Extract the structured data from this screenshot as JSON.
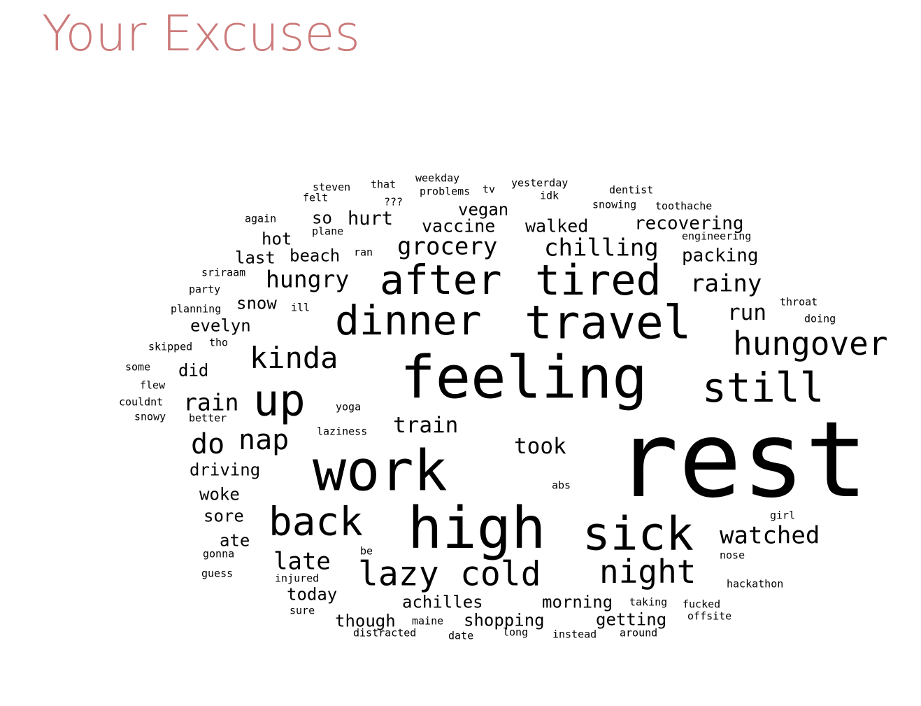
{
  "title": "Your Excuses",
  "colors": {
    "title": "#cc7a7a",
    "words": "#000000",
    "background": "#ffffff"
  },
  "words": [
    "rest",
    "feeling",
    "work",
    "high",
    "travel",
    "tired",
    "after",
    "dinner",
    "sick",
    "up",
    "back",
    "still",
    "hungover",
    "kinda",
    "cold",
    "lazy",
    "night",
    "nap",
    "watched",
    "chilling",
    "grocery",
    "late",
    "do",
    "rainy",
    "rain",
    "train",
    "took",
    "hungry",
    "recovering",
    "run",
    "packing",
    "vaccine",
    "walked",
    "vegan",
    "hurt",
    "achilles",
    "driving",
    "today",
    "shopping",
    "morning",
    "getting",
    "though",
    "beach",
    "last",
    "hot",
    "snow",
    "evelyn",
    "woke",
    "sore",
    "ate",
    "so",
    "did",
    "steven",
    "felt",
    "that",
    "???",
    "weekday",
    "problems",
    "tv",
    "yesterday",
    "idk",
    "dentist",
    "snowing",
    "toothache",
    "again",
    "plane",
    "engineering",
    "ran",
    "sriraam",
    "party",
    "planning",
    "ill",
    "throat",
    "doing",
    "tho",
    "skipped",
    "some",
    "flew",
    "couldnt",
    "snowy",
    "better",
    "yoga",
    "laziness",
    "abs",
    "girl",
    "gonna",
    "nose",
    "be",
    "guess",
    "injured",
    "hackathon",
    "taking",
    "fucked",
    "offsite",
    "sure",
    "maine",
    "distracted",
    "date",
    "long",
    "instead",
    "around"
  ]
}
